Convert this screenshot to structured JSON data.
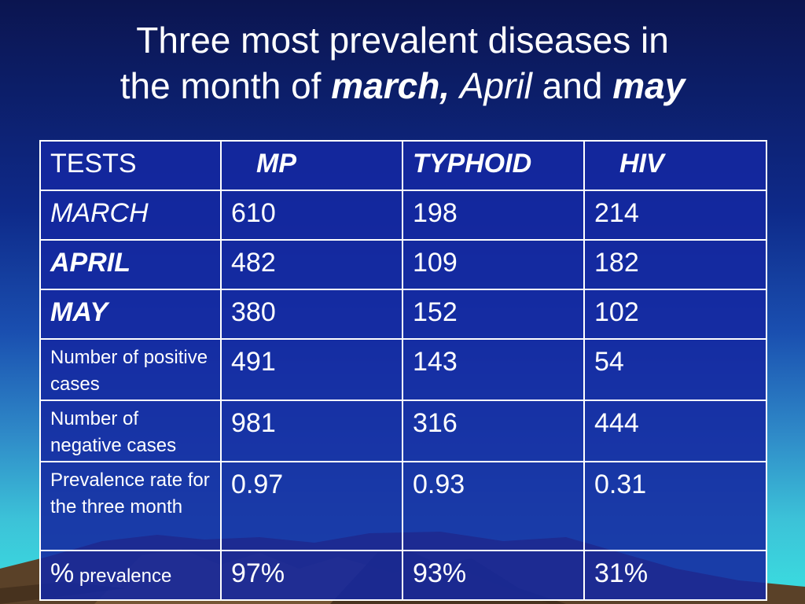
{
  "title": {
    "line1": "Three most prevalent diseases in",
    "line2_prefix": "the month of ",
    "march": "march,",
    "april": "April",
    "and": " and ",
    "may": "may"
  },
  "table": {
    "header": {
      "tests": "TESTS",
      "mp": "MP",
      "typhoid": "TYPHOID",
      "hiv": "HIV"
    },
    "rows": [
      {
        "label": "MARCH",
        "mp": "610",
        "typhoid": "198",
        "hiv": "214"
      },
      {
        "label": "APRIL",
        "mp": "482",
        "typhoid": "109",
        "hiv": "182"
      },
      {
        "label": "MAY",
        "mp": "380",
        "typhoid": "152",
        "hiv": "102"
      },
      {
        "label": "Number of positive cases",
        "mp": "491",
        "typhoid": "143",
        "hiv": "54"
      },
      {
        "label": "Number of negative cases",
        "mp": "981",
        "typhoid": "316",
        "hiv": "444"
      },
      {
        "label": "Prevalence rate for the three month",
        "mp": "0.97",
        "typhoid": "0.93",
        "hiv": "0.31"
      },
      {
        "label_symbol": "%",
        "label_word": " prevalence",
        "mp": "97%",
        "typhoid": "93%",
        "hiv": "31%"
      }
    ]
  },
  "colors": {
    "background_top": "#0b1550",
    "table_fill": "#1428a0",
    "text": "#ffffff",
    "mountain": "#5a4128",
    "sea": "#3ae0e0"
  }
}
